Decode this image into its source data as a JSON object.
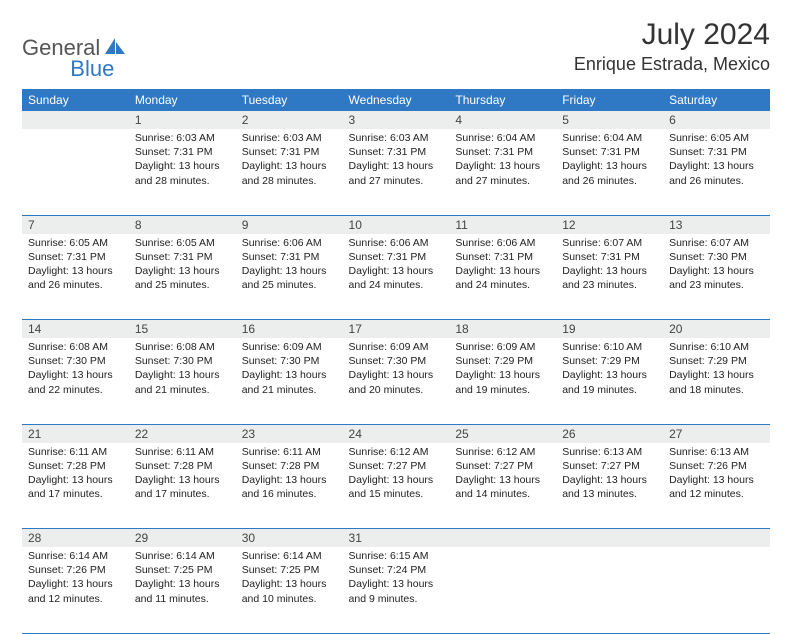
{
  "brand": {
    "part1": "General",
    "part2": "Blue"
  },
  "title": "July 2024",
  "location": "Enrique Estrada, Mexico",
  "colors": {
    "header_bg": "#2f78c4",
    "header_fg": "#ffffff",
    "daynum_bg": "#eceded",
    "border": "#2f78c4",
    "text": "#222222",
    "title": "#333333"
  },
  "day_headers": [
    "Sunday",
    "Monday",
    "Tuesday",
    "Wednesday",
    "Thursday",
    "Friday",
    "Saturday"
  ],
  "weeks": [
    [
      null,
      {
        "n": "1",
        "sr": "Sunrise: 6:03 AM",
        "ss": "Sunset: 7:31 PM",
        "dl": "Daylight: 13 hours and 28 minutes."
      },
      {
        "n": "2",
        "sr": "Sunrise: 6:03 AM",
        "ss": "Sunset: 7:31 PM",
        "dl": "Daylight: 13 hours and 28 minutes."
      },
      {
        "n": "3",
        "sr": "Sunrise: 6:03 AM",
        "ss": "Sunset: 7:31 PM",
        "dl": "Daylight: 13 hours and 27 minutes."
      },
      {
        "n": "4",
        "sr": "Sunrise: 6:04 AM",
        "ss": "Sunset: 7:31 PM",
        "dl": "Daylight: 13 hours and 27 minutes."
      },
      {
        "n": "5",
        "sr": "Sunrise: 6:04 AM",
        "ss": "Sunset: 7:31 PM",
        "dl": "Daylight: 13 hours and 26 minutes."
      },
      {
        "n": "6",
        "sr": "Sunrise: 6:05 AM",
        "ss": "Sunset: 7:31 PM",
        "dl": "Daylight: 13 hours and 26 minutes."
      }
    ],
    [
      {
        "n": "7",
        "sr": "Sunrise: 6:05 AM",
        "ss": "Sunset: 7:31 PM",
        "dl": "Daylight: 13 hours and 26 minutes."
      },
      {
        "n": "8",
        "sr": "Sunrise: 6:05 AM",
        "ss": "Sunset: 7:31 PM",
        "dl": "Daylight: 13 hours and 25 minutes."
      },
      {
        "n": "9",
        "sr": "Sunrise: 6:06 AM",
        "ss": "Sunset: 7:31 PM",
        "dl": "Daylight: 13 hours and 25 minutes."
      },
      {
        "n": "10",
        "sr": "Sunrise: 6:06 AM",
        "ss": "Sunset: 7:31 PM",
        "dl": "Daylight: 13 hours and 24 minutes."
      },
      {
        "n": "11",
        "sr": "Sunrise: 6:06 AM",
        "ss": "Sunset: 7:31 PM",
        "dl": "Daylight: 13 hours and 24 minutes."
      },
      {
        "n": "12",
        "sr": "Sunrise: 6:07 AM",
        "ss": "Sunset: 7:31 PM",
        "dl": "Daylight: 13 hours and 23 minutes."
      },
      {
        "n": "13",
        "sr": "Sunrise: 6:07 AM",
        "ss": "Sunset: 7:30 PM",
        "dl": "Daylight: 13 hours and 23 minutes."
      }
    ],
    [
      {
        "n": "14",
        "sr": "Sunrise: 6:08 AM",
        "ss": "Sunset: 7:30 PM",
        "dl": "Daylight: 13 hours and 22 minutes."
      },
      {
        "n": "15",
        "sr": "Sunrise: 6:08 AM",
        "ss": "Sunset: 7:30 PM",
        "dl": "Daylight: 13 hours and 21 minutes."
      },
      {
        "n": "16",
        "sr": "Sunrise: 6:09 AM",
        "ss": "Sunset: 7:30 PM",
        "dl": "Daylight: 13 hours and 21 minutes."
      },
      {
        "n": "17",
        "sr": "Sunrise: 6:09 AM",
        "ss": "Sunset: 7:30 PM",
        "dl": "Daylight: 13 hours and 20 minutes."
      },
      {
        "n": "18",
        "sr": "Sunrise: 6:09 AM",
        "ss": "Sunset: 7:29 PM",
        "dl": "Daylight: 13 hours and 19 minutes."
      },
      {
        "n": "19",
        "sr": "Sunrise: 6:10 AM",
        "ss": "Sunset: 7:29 PM",
        "dl": "Daylight: 13 hours and 19 minutes."
      },
      {
        "n": "20",
        "sr": "Sunrise: 6:10 AM",
        "ss": "Sunset: 7:29 PM",
        "dl": "Daylight: 13 hours and 18 minutes."
      }
    ],
    [
      {
        "n": "21",
        "sr": "Sunrise: 6:11 AM",
        "ss": "Sunset: 7:28 PM",
        "dl": "Daylight: 13 hours and 17 minutes."
      },
      {
        "n": "22",
        "sr": "Sunrise: 6:11 AM",
        "ss": "Sunset: 7:28 PM",
        "dl": "Daylight: 13 hours and 17 minutes."
      },
      {
        "n": "23",
        "sr": "Sunrise: 6:11 AM",
        "ss": "Sunset: 7:28 PM",
        "dl": "Daylight: 13 hours and 16 minutes."
      },
      {
        "n": "24",
        "sr": "Sunrise: 6:12 AM",
        "ss": "Sunset: 7:27 PM",
        "dl": "Daylight: 13 hours and 15 minutes."
      },
      {
        "n": "25",
        "sr": "Sunrise: 6:12 AM",
        "ss": "Sunset: 7:27 PM",
        "dl": "Daylight: 13 hours and 14 minutes."
      },
      {
        "n": "26",
        "sr": "Sunrise: 6:13 AM",
        "ss": "Sunset: 7:27 PM",
        "dl": "Daylight: 13 hours and 13 minutes."
      },
      {
        "n": "27",
        "sr": "Sunrise: 6:13 AM",
        "ss": "Sunset: 7:26 PM",
        "dl": "Daylight: 13 hours and 12 minutes."
      }
    ],
    [
      {
        "n": "28",
        "sr": "Sunrise: 6:14 AM",
        "ss": "Sunset: 7:26 PM",
        "dl": "Daylight: 13 hours and 12 minutes."
      },
      {
        "n": "29",
        "sr": "Sunrise: 6:14 AM",
        "ss": "Sunset: 7:25 PM",
        "dl": "Daylight: 13 hours and 11 minutes."
      },
      {
        "n": "30",
        "sr": "Sunrise: 6:14 AM",
        "ss": "Sunset: 7:25 PM",
        "dl": "Daylight: 13 hours and 10 minutes."
      },
      {
        "n": "31",
        "sr": "Sunrise: 6:15 AM",
        "ss": "Sunset: 7:24 PM",
        "dl": "Daylight: 13 hours and 9 minutes."
      },
      null,
      null,
      null
    ]
  ]
}
